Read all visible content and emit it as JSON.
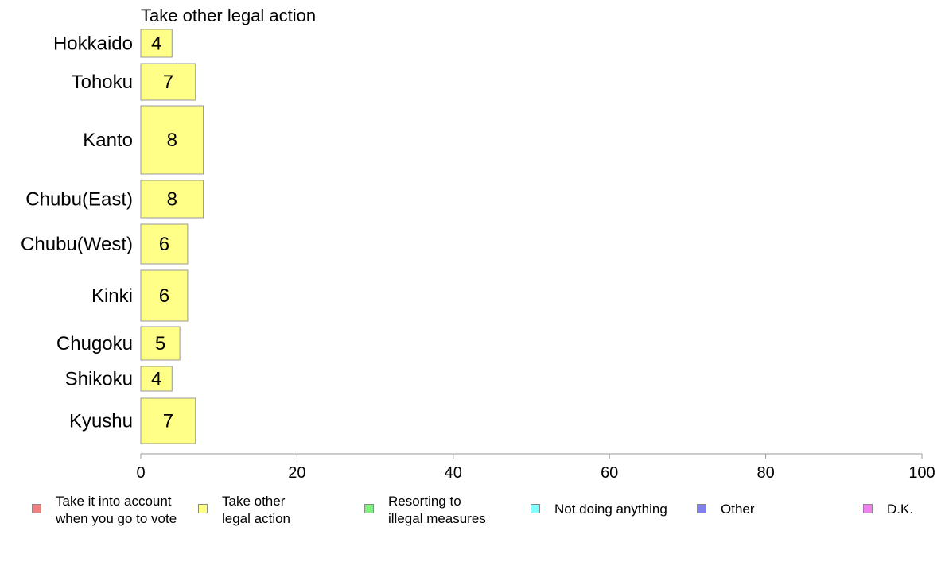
{
  "chart_data": {
    "type": "bar",
    "orientation": "horizontal",
    "title": "Take other legal action",
    "categories": [
      "Hokkaido",
      "Tohoku",
      "Kanto",
      "Chubu(East)",
      "Chubu(West)",
      "Kinki",
      "Chugoku",
      "Shikoku",
      "Kyushu"
    ],
    "values": [
      4,
      7,
      8,
      8,
      6,
      6,
      5,
      4,
      7
    ],
    "value_labels": [
      "4",
      "7",
      "8",
      "8",
      "6",
      "6",
      "5",
      "4",
      "7"
    ],
    "xlim": [
      0,
      100
    ],
    "xticks": [
      0,
      20,
      40,
      60,
      80,
      100
    ],
    "xtick_labels": [
      "0",
      "20",
      "40",
      "60",
      "80",
      "100"
    ],
    "grid": false,
    "bar_color": "#ffff88",
    "legend_placement": "bottom",
    "legend": [
      {
        "label": "Take it into account\nwhen you go to vote",
        "color": "#f08080"
      },
      {
        "label": "Take other\nlegal action",
        "color": "#ffff80"
      },
      {
        "label": "Resorting to\nillegal measures",
        "color": "#80f080"
      },
      {
        "label": "Not doing anything",
        "color": "#80ffff"
      },
      {
        "label": "Other",
        "color": "#8080f0"
      },
      {
        "label": "D.K.",
        "color": "#f080f0"
      }
    ]
  }
}
